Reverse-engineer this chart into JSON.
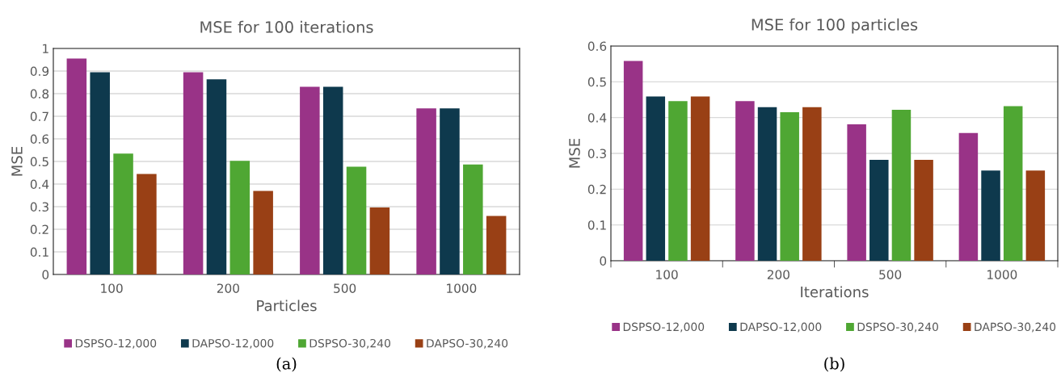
{
  "chart_data": [
    {
      "type": "bar",
      "title": "MSE for 100 iterations",
      "xlabel": "Particles",
      "ylabel": "MSE",
      "categories": [
        "100",
        "200",
        "500",
        "1000"
      ],
      "series": [
        {
          "name": "DSPSO-12,000",
          "color": "#993387",
          "values": [
            0.955,
            0.895,
            0.83,
            0.735
          ]
        },
        {
          "name": "DAPSO-12,000",
          "color": "#0e394d",
          "values": [
            0.895,
            0.863,
            0.83,
            0.735
          ]
        },
        {
          "name": "DSPSO-30,240",
          "color": "#4fa733",
          "values": [
            0.535,
            0.503,
            0.477,
            0.487
          ]
        },
        {
          "name": "DAPSO-30,240",
          "color": "#994015",
          "values": [
            0.445,
            0.37,
            0.296,
            0.259
          ]
        }
      ],
      "ylim": [
        0,
        1
      ],
      "yticks": [
        0,
        0.1,
        0.2,
        0.3,
        0.4,
        0.5,
        0.6,
        0.7,
        0.8,
        0.9,
        1
      ],
      "grid": "y",
      "legend": "bottom",
      "annotations": [
        "(a)"
      ]
    },
    {
      "type": "bar",
      "title": "MSE for 100 particles",
      "xlabel": "Iterations",
      "ylabel": "MSE",
      "categories": [
        "100",
        "200",
        "500",
        "1000"
      ],
      "series": [
        {
          "name": "DSPSO-12,000",
          "color": "#993387",
          "values": [
            0.558,
            0.446,
            0.381,
            0.357
          ]
        },
        {
          "name": "DAPSO-12,000",
          "color": "#0e394d",
          "values": [
            0.459,
            0.429,
            0.282,
            0.252
          ]
        },
        {
          "name": "DSPSO-30,240",
          "color": "#4fa733",
          "values": [
            0.446,
            0.415,
            0.422,
            0.432
          ]
        },
        {
          "name": "DAPSO-30,240",
          "color": "#994015",
          "values": [
            0.459,
            0.429,
            0.282,
            0.252
          ]
        }
      ],
      "ylim": [
        0,
        0.6
      ],
      "yticks": [
        0,
        0.1,
        0.2,
        0.3,
        0.4,
        0.5,
        0.6
      ],
      "grid": "y",
      "legend": "bottom",
      "annotations": [
        "(b)"
      ]
    }
  ]
}
